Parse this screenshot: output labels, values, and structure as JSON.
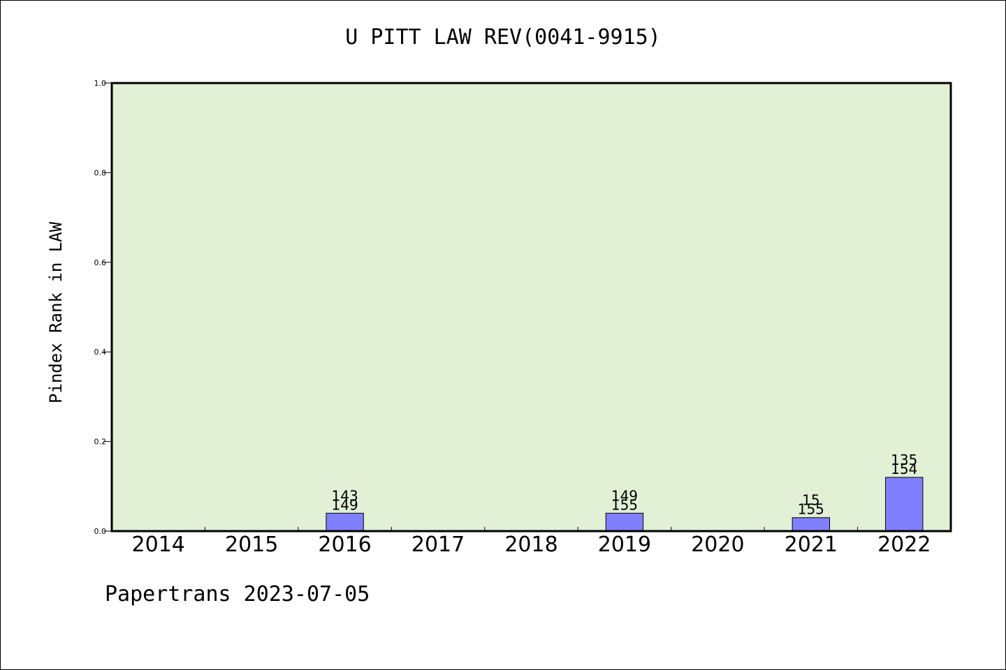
{
  "footer": {
    "text": "Papertrans 2023-07-05"
  },
  "chart_data": {
    "type": "bar",
    "title": "U PITT LAW REV(0041-9915)",
    "xlabel": "",
    "ylabel": "Pindex Rank in LAW",
    "categories": [
      "2014",
      "2015",
      "2016",
      "2017",
      "2018",
      "2019",
      "2020",
      "2021",
      "2022"
    ],
    "values": [
      0,
      0,
      0.04,
      0,
      0,
      0.04,
      0,
      0.03,
      0.12
    ],
    "bar_labels": [
      null,
      null,
      [
        "143",
        "149"
      ],
      null,
      null,
      [
        "149",
        "155"
      ],
      null,
      [
        "15",
        "155"
      ],
      [
        "135",
        "154"
      ]
    ],
    "ylim": [
      0,
      1.0
    ],
    "yticks": [
      "0.0",
      "0.2",
      "0.4",
      "0.6",
      "0.8",
      "1.0"
    ],
    "grid": false,
    "colors": {
      "plot_background": "#e2f0d6",
      "bar_fill": "#8080ff",
      "bar_stroke": "#000000",
      "axis": "#000000"
    }
  }
}
